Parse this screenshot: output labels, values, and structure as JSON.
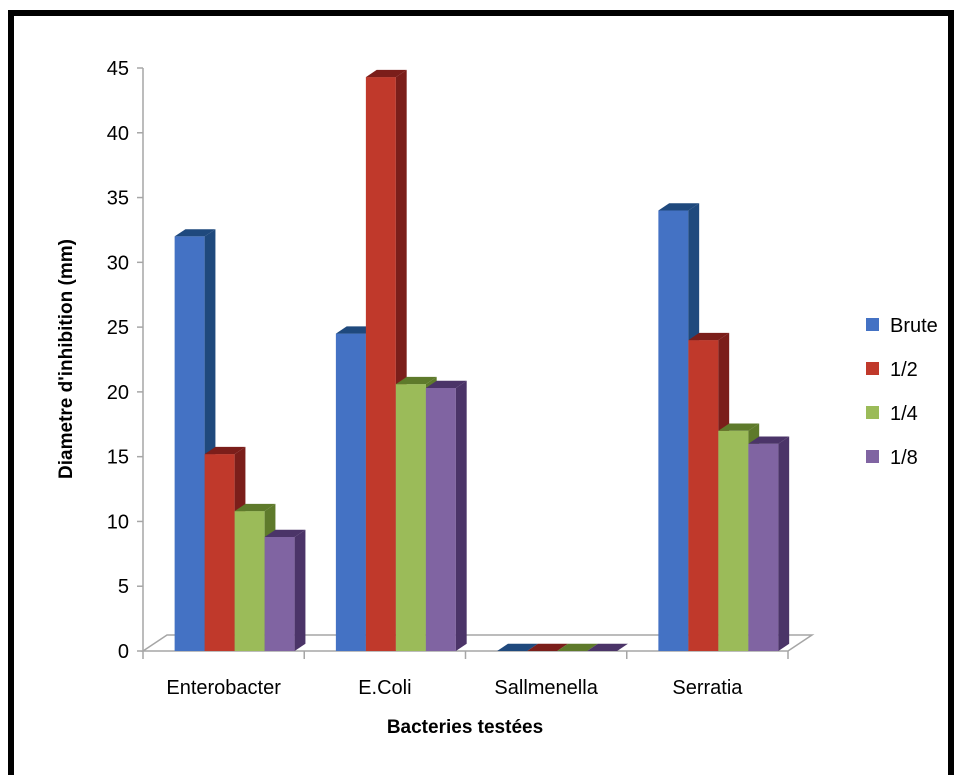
{
  "chart_data": {
    "type": "bar",
    "title": "",
    "xlabel": "Bacteries testées",
    "ylabel": "Diametre d'inhibition (mm)",
    "ylim": [
      0,
      45
    ],
    "y_ticks": [
      0,
      5,
      10,
      15,
      20,
      25,
      30,
      35,
      40,
      45
    ],
    "categories": [
      "Enterobacter",
      "E.Coli",
      "Sallmenella",
      "Serratia"
    ],
    "series": [
      {
        "name": "Brute",
        "values": [
          32,
          24.5,
          0,
          34
        ],
        "color": "#4472C4",
        "side_color": "#1F497D"
      },
      {
        "name": "1/2",
        "values": [
          15.2,
          44.3,
          0,
          24
        ],
        "color": "#C0392B",
        "side_color": "#7B1E1A"
      },
      {
        "name": "1/4",
        "values": [
          10.8,
          20.6,
          0,
          17
        ],
        "color": "#9BBB59",
        "side_color": "#5E7A2B"
      },
      {
        "name": "1/8",
        "values": [
          8.8,
          20.3,
          0,
          16
        ],
        "color": "#8064A2",
        "side_color": "#4B3468"
      }
    ],
    "grid": false,
    "legend": "right",
    "style": "3d-clustered-column"
  }
}
